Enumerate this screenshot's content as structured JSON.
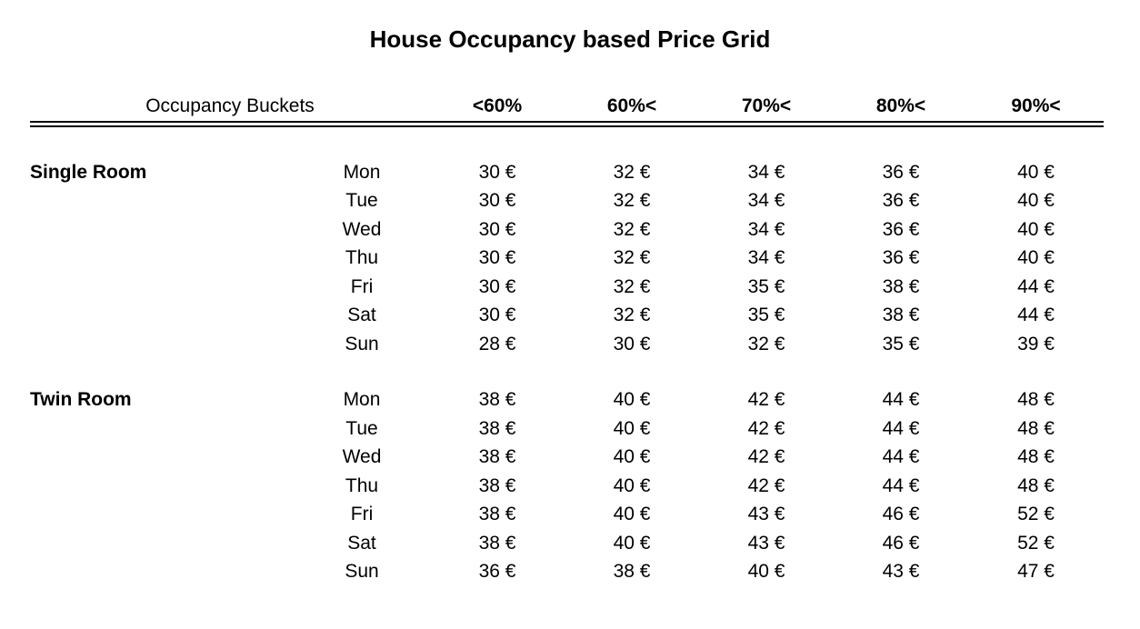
{
  "page": {
    "title": "House Occupancy based Price Grid"
  },
  "table": {
    "corner_header": "Occupancy Buckets",
    "bucket_headers": [
      "<60%",
      "60%<",
      "70%<",
      "80%<",
      "90%<"
    ],
    "sections": [
      {
        "room": "Single Room",
        "rows": [
          {
            "day": "Mon",
            "prices": [
              "30 €",
              "32 €",
              "34 €",
              "36 €",
              "40 €"
            ]
          },
          {
            "day": "Tue",
            "prices": [
              "30 €",
              "32 €",
              "34 €",
              "36 €",
              "40 €"
            ]
          },
          {
            "day": "Wed",
            "prices": [
              "30 €",
              "32 €",
              "34 €",
              "36 €",
              "40 €"
            ]
          },
          {
            "day": "Thu",
            "prices": [
              "30 €",
              "32 €",
              "34 €",
              "36 €",
              "40 €"
            ]
          },
          {
            "day": "Fri",
            "prices": [
              "30 €",
              "32 €",
              "35 €",
              "38 €",
              "44 €"
            ]
          },
          {
            "day": "Sat",
            "prices": [
              "30 €",
              "32 €",
              "35 €",
              "38 €",
              "44 €"
            ]
          },
          {
            "day": "Sun",
            "prices": [
              "28 €",
              "30 €",
              "32 €",
              "35 €",
              "39 €"
            ]
          }
        ]
      },
      {
        "room": "Twin Room",
        "rows": [
          {
            "day": "Mon",
            "prices": [
              "38 €",
              "40 €",
              "42 €",
              "44 €",
              "48 €"
            ]
          },
          {
            "day": "Tue",
            "prices": [
              "38 €",
              "40 €",
              "42 €",
              "44 €",
              "48 €"
            ]
          },
          {
            "day": "Wed",
            "prices": [
              "38 €",
              "40 €",
              "42 €",
              "44 €",
              "48 €"
            ]
          },
          {
            "day": "Thu",
            "prices": [
              "38 €",
              "40 €",
              "42 €",
              "44 €",
              "48 €"
            ]
          },
          {
            "day": "Fri",
            "prices": [
              "38 €",
              "40 €",
              "43 €",
              "46 €",
              "52 €"
            ]
          },
          {
            "day": "Sat",
            "prices": [
              "38 €",
              "40 €",
              "43 €",
              "46 €",
              "52 €"
            ]
          },
          {
            "day": "Sun",
            "prices": [
              "36 €",
              "38 €",
              "40 €",
              "43 €",
              "47 €"
            ]
          }
        ]
      }
    ]
  },
  "colors": {
    "text": "#000000",
    "background": "#ffffff",
    "rule": "#000000"
  }
}
